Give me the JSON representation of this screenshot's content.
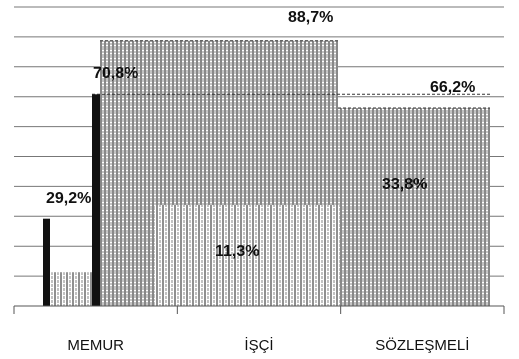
{
  "chart_data": {
    "type": "bar",
    "categories": [
      "MEMUR",
      "İŞÇİ",
      "SÖZLEŞMELİ"
    ],
    "series": [
      {
        "values": [
          29.2,
          11.3,
          33.8
        ],
        "color": "#111111"
      },
      {
        "values": [
          70.8,
          88.7,
          66.2
        ],
        "color": "#111111"
      }
    ],
    "data_labels": [
      [
        "29,2%",
        "11,3%",
        "33,8%"
      ],
      [
        "70,8%",
        "88,7%",
        "66,2%"
      ]
    ],
    "ylim": [
      0,
      100
    ],
    "grid": true,
    "legend": "none"
  }
}
